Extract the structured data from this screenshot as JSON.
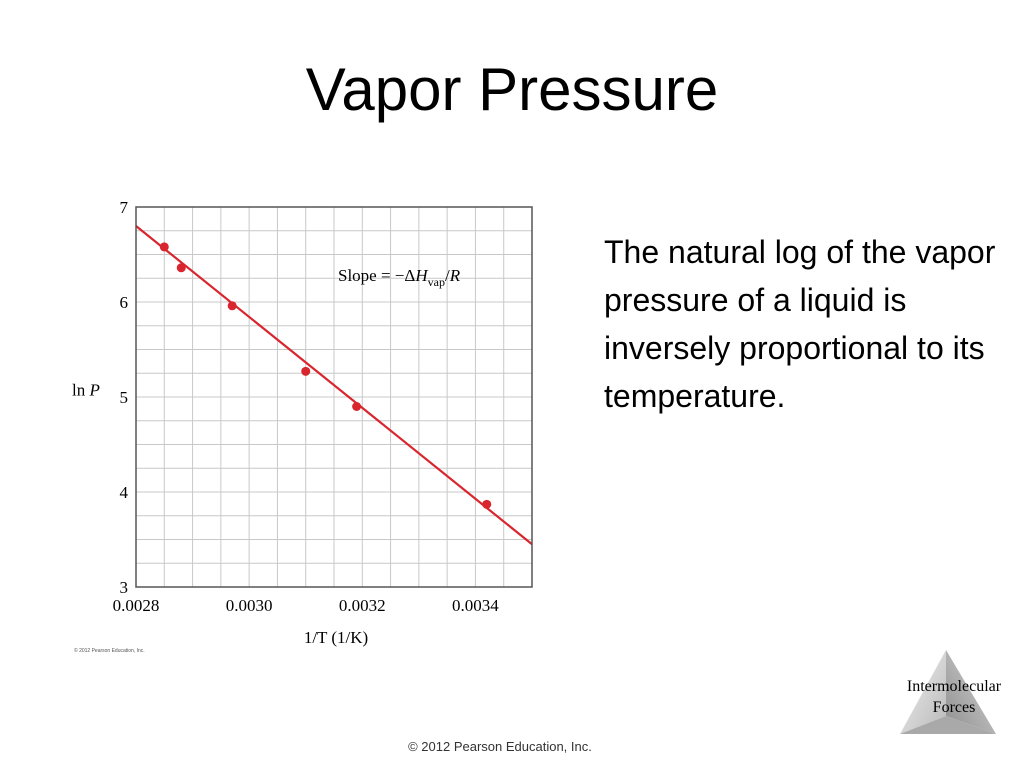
{
  "slide": {
    "title": "Vapor Pressure",
    "body": "The natural log of the vapor pressure of a liquid is inversely proportional to its temperature.",
    "footer": "© 2012 Pearson Education, Inc.",
    "corner_line1": "Intermolecular",
    "corner_line2": "Forces"
  },
  "chart_data": {
    "type": "scatter",
    "xlabel": "1/T  (1/K)",
    "ylabel": "ln P",
    "xlim": [
      0.0028,
      0.0035
    ],
    "ylim": [
      3,
      7
    ],
    "x_ticks": [
      0.0028,
      0.003,
      0.0032,
      0.0034
    ],
    "x_tick_labels": [
      "0.0028",
      "0.0030",
      "0.0032",
      "0.0034"
    ],
    "y_ticks": [
      3,
      4,
      5,
      6,
      7
    ],
    "y_tick_labels": [
      "3",
      "4",
      "5",
      "6",
      "7"
    ],
    "grid": true,
    "points": [
      {
        "x": 0.00285,
        "y": 6.58
      },
      {
        "x": 0.00288,
        "y": 6.36
      },
      {
        "x": 0.00297,
        "y": 5.96
      },
      {
        "x": 0.0031,
        "y": 5.27
      },
      {
        "x": 0.00319,
        "y": 4.9
      },
      {
        "x": 0.00342,
        "y": 3.87
      }
    ],
    "fit_line": {
      "x": [
        0.0028,
        0.0035
      ],
      "y": [
        6.8,
        3.45
      ]
    },
    "annotation": {
      "prefix": "Slope = −Δ",
      "H": "H",
      "sub": "vap",
      "suffix": "/",
      "R": "R"
    },
    "credit": "© 2012 Pearson Education, Inc.",
    "colors": {
      "line": "#d9252d",
      "points": "#d9252d",
      "grid": "#c8c8c8",
      "frame": "#555555"
    }
  }
}
